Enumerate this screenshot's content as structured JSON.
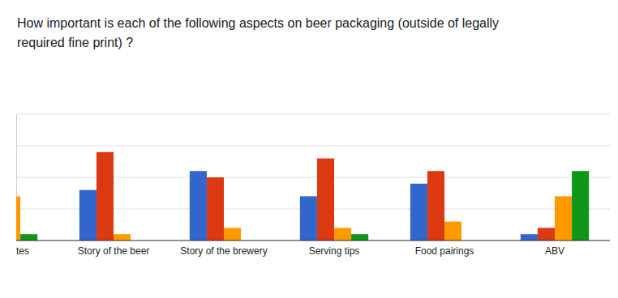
{
  "chart_data": {
    "type": "bar",
    "title": "How important is each of the following aspects on beer packaging (outside of legally required fine print) ?",
    "categories": [
      "tes",
      "Story of the beer",
      "Story of the brewery",
      "Serving tips",
      "Food pairings",
      "ABV"
    ],
    "series": [
      {
        "color": "#3366cc",
        "values": [
          null,
          8,
          11,
          7,
          9,
          1
        ]
      },
      {
        "color": "#dc3912",
        "values": [
          null,
          14,
          10,
          13,
          11,
          2
        ]
      },
      {
        "color": "#ff9900",
        "values": [
          7,
          1,
          2,
          2,
          3,
          7
        ]
      },
      {
        "color": "#109618",
        "values": [
          1,
          0,
          0,
          1,
          0,
          11
        ]
      }
    ],
    "ylim": [
      0,
      20
    ],
    "yticks": [
      0,
      5,
      10,
      15,
      20
    ],
    "grid": true,
    "tick_labels": "x"
  }
}
